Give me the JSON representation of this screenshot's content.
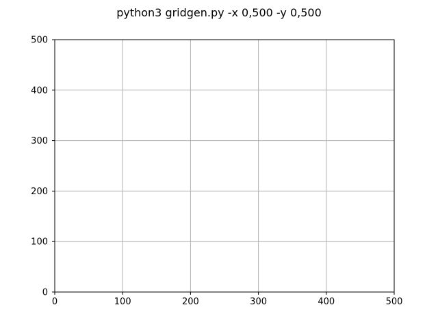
{
  "chart_data": {
    "type": "scatter",
    "title": "python3 gridgen.py -x 0,500 -y 0,500",
    "xlabel": "",
    "ylabel": "",
    "xlim": [
      0,
      500
    ],
    "ylim": [
      0,
      500
    ],
    "xticks": [
      0,
      100,
      200,
      300,
      400,
      500
    ],
    "yticks": [
      0,
      100,
      200,
      300,
      400,
      500
    ],
    "x_tick_labels": [
      "0",
      "100",
      "200",
      "300",
      "400",
      "500"
    ],
    "y_tick_labels": [
      "0",
      "100",
      "200",
      "300",
      "400",
      "500"
    ],
    "grid": true,
    "series": [],
    "colors": {
      "background": "#ffffff",
      "axes": "#000000",
      "grid": "#b0b0b0",
      "text": "#000000"
    }
  }
}
